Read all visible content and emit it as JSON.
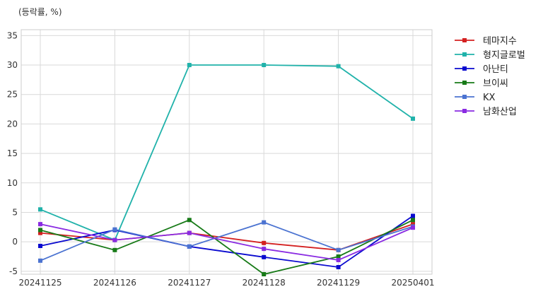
{
  "unit_label": "(등락률, %)",
  "chart_data": {
    "type": "line",
    "x": [
      "20241125",
      "20241126",
      "20241127",
      "20241128",
      "20241129",
      "20250401"
    ],
    "ylim": [
      -5.5,
      36
    ],
    "yticks": [
      -5,
      0,
      5,
      10,
      15,
      20,
      25,
      30,
      35
    ],
    "grid": true,
    "legend_position": "right-top-outside",
    "series": [
      {
        "name": "테마지수",
        "color": "#d42020",
        "values": [
          1.5,
          0.3,
          1.5,
          -0.2,
          -1.4,
          3.0
        ]
      },
      {
        "name": "형지글로벌",
        "color": "#20b2aa",
        "values": [
          5.5,
          0.3,
          30.0,
          30.0,
          29.8,
          20.9
        ]
      },
      {
        "name": "아난티",
        "color": "#0a0acf",
        "values": [
          -0.7,
          2.0,
          -0.8,
          -2.6,
          -4.3,
          4.4
        ]
      },
      {
        "name": "브이씨",
        "color": "#177a17",
        "values": [
          2.0,
          -1.4,
          3.7,
          -5.5,
          -2.5,
          3.7
        ]
      },
      {
        "name": "KX",
        "color": "#4b73d1",
        "values": [
          -3.2,
          2.1,
          -0.8,
          3.3,
          -1.4,
          2.6
        ]
      },
      {
        "name": "남화산업",
        "color": "#8a2be2",
        "values": [
          3.0,
          0.3,
          1.5,
          -1.2,
          -3.1,
          2.4
        ]
      }
    ]
  }
}
